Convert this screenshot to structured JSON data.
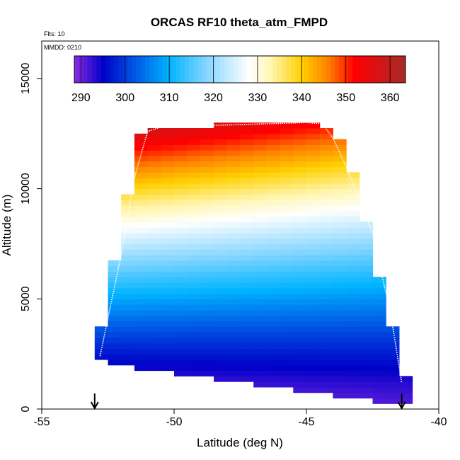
{
  "chart_data": {
    "type": "heatmap",
    "title": "ORCAS RF10 theta_atm_FMPD",
    "annotations": {
      "flights": "Flts: 10",
      "date": "MMDD: 0210"
    },
    "xlabel": "Latitude (deg N)",
    "ylabel": "Altitude (m)",
    "xlim": [
      -55,
      -40
    ],
    "ylim": [
      0,
      16700
    ],
    "xticks": [
      "-55",
      "-50",
      "-45",
      "-40"
    ],
    "xtick_values": [
      -55,
      -50,
      -45,
      -40
    ],
    "yticks": [
      "0",
      "5000",
      "10000",
      "15000"
    ],
    "ytick_values": [
      0,
      5000,
      10000,
      15000
    ],
    "colorbar": {
      "range": [
        288.5,
        363.5
      ],
      "ticks": [
        "290",
        "300",
        "310",
        "320",
        "330",
        "340",
        "350",
        "360"
      ],
      "tick_values": [
        290,
        300,
        310,
        320,
        330,
        340,
        350,
        360
      ],
      "color_stops": [
        {
          "v": 288.5,
          "c": "#8a2be2"
        },
        {
          "v": 295,
          "c": "#0000c8"
        },
        {
          "v": 303,
          "c": "#0060e8"
        },
        {
          "v": 310,
          "c": "#00b4ff"
        },
        {
          "v": 318,
          "c": "#7fd4ff"
        },
        {
          "v": 328,
          "c": "#ffffff"
        },
        {
          "v": 333,
          "c": "#fff6b0"
        },
        {
          "v": 340,
          "c": "#ffd000"
        },
        {
          "v": 346,
          "c": "#ff8000"
        },
        {
          "v": 352,
          "c": "#ff0000"
        },
        {
          "v": 363.5,
          "c": "#a52a2a"
        }
      ]
    },
    "field": {
      "lat_range": [
        -53,
        -41.3
      ],
      "lat_step": 0.5,
      "alt_step": 250,
      "theta_ground_south": 289,
      "theta_ground_north": 291,
      "theta_top_south": 362,
      "theta_top_north": 349,
      "lapse_k_per_km": 5.7,
      "min_theta": 290,
      "top_altitude": 13000,
      "bottom_profile": [
        [
          -53,
          2300
        ],
        [
          -50,
          1700
        ],
        [
          -45,
          900
        ],
        [
          -41.3,
          350
        ]
      ],
      "top_profile": [
        [
          -51.2,
          12600
        ],
        [
          -44.5,
          13000
        ],
        [
          -43.5,
          11800
        ],
        [
          -42.5,
          7200
        ],
        [
          -41.3,
          1300
        ]
      ],
      "south_edge_profile": [
        [
          -53,
          2300
        ],
        [
          -52.5,
          5000
        ],
        [
          -52,
          8500
        ],
        [
          -51.5,
          11000
        ],
        [
          -51.2,
          12600
        ]
      ]
    },
    "flight_track": [
      [
        -52.8,
        2400
      ],
      [
        -52.0,
        7000
      ],
      [
        -51.5,
        10500
      ],
      [
        -51.0,
        12600
      ],
      [
        -50.5,
        12800
      ],
      [
        -45.0,
        13000
      ],
      [
        -44.4,
        12950
      ],
      [
        -44.0,
        12300
      ],
      [
        -43.5,
        11000
      ],
      [
        -42.5,
        8000
      ],
      [
        -41.8,
        4200
      ],
      [
        -41.4,
        1200
      ]
    ],
    "markers": [
      {
        "name": "start",
        "lat": -53.0
      },
      {
        "name": "end",
        "lat": -41.4
      }
    ]
  }
}
